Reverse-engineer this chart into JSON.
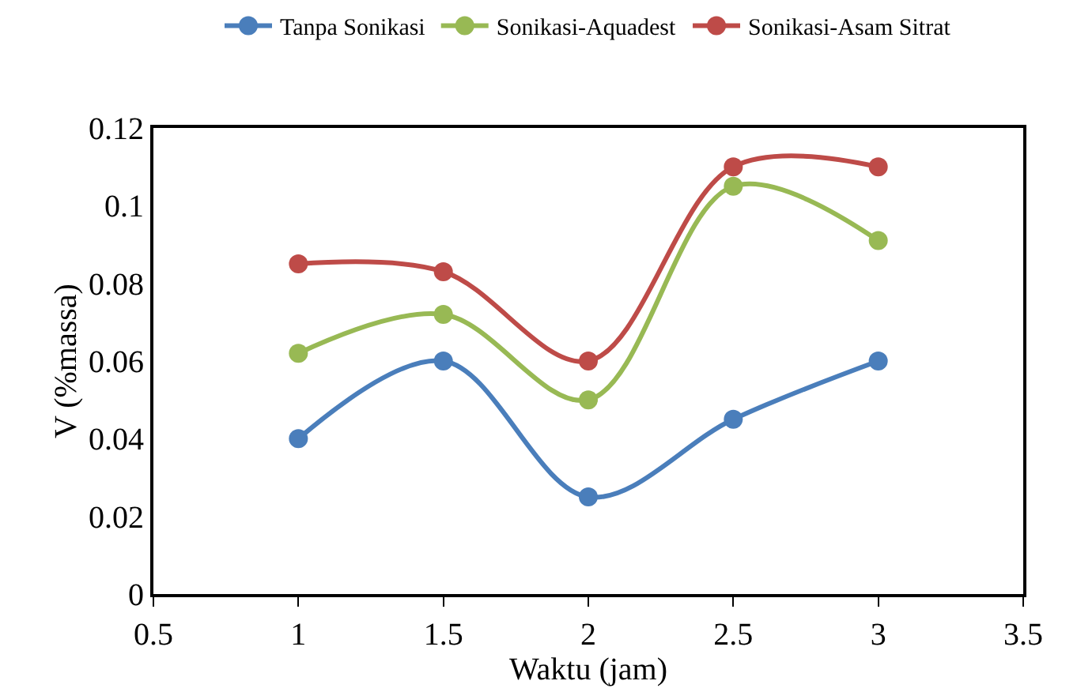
{
  "chart_data": {
    "type": "line",
    "xlabel": "Waktu (jam)",
    "ylabel": "V (%massa)",
    "x": [
      1,
      1.5,
      2,
      2.5,
      3
    ],
    "series": [
      {
        "name": "Tanpa Sonikasi",
        "color": "#4a7ebb",
        "values": [
          0.04,
          0.06,
          0.025,
          0.045,
          0.06
        ]
      },
      {
        "name": "Sonikasi-Aquadest",
        "color": "#98b954",
        "values": [
          0.062,
          0.072,
          0.05,
          0.105,
          0.091
        ]
      },
      {
        "name": "Sonikasi-Asam Sitrat",
        "color": "#be4b48",
        "values": [
          0.085,
          0.083,
          0.06,
          0.11,
          0.11
        ]
      }
    ],
    "xlim": [
      0.5,
      3.5
    ],
    "xticks": [
      0.5,
      1,
      1.5,
      2,
      2.5,
      3,
      3.5
    ],
    "ylim": [
      0,
      0.12
    ],
    "yticks": [
      0,
      0.02,
      0.04,
      0.06,
      0.08,
      0.1,
      0.12
    ],
    "legend": "top",
    "marker": "circle",
    "line_style": "solid"
  }
}
